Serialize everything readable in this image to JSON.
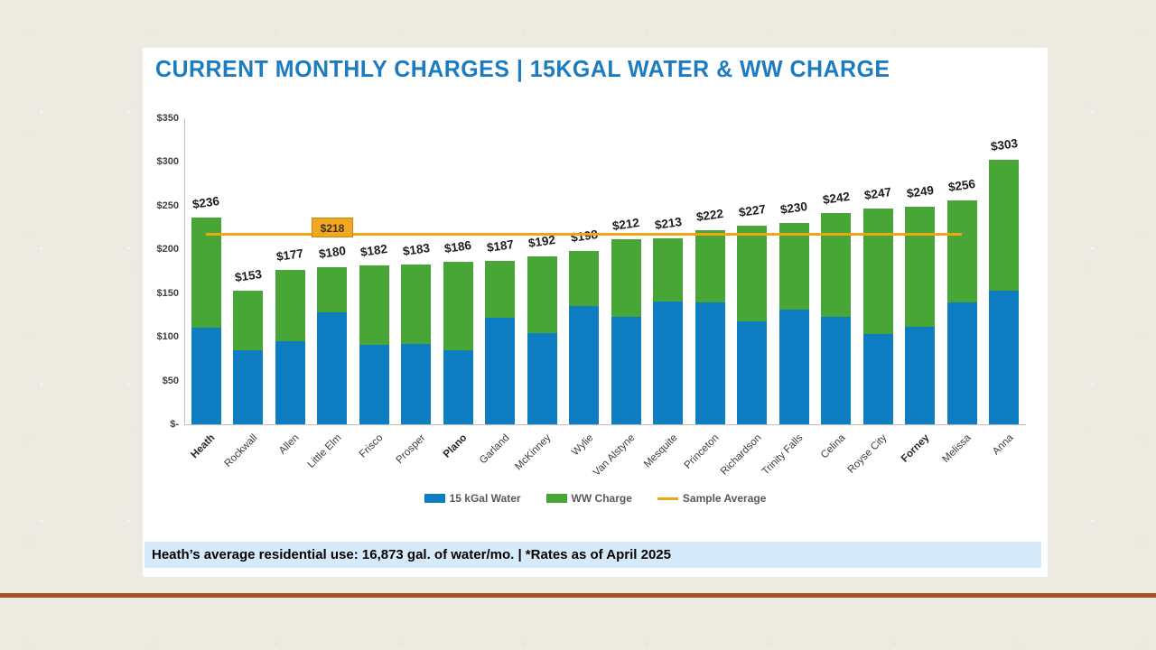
{
  "slide": {
    "title": "CURRENT MONTHLY CHARGES | 15KGAL WATER & WW CHARGE",
    "footnote": "Heath’s average residential use: 16,873 gal. of water/mo. | *Rates as of April 2025"
  },
  "colors": {
    "water_blue": "#0f7dc2",
    "ww_green": "#47a636",
    "average_orange": "#f0a512",
    "title_blue": "#1b7cc1",
    "footnote_bg": "#d7eafa",
    "divider_brown": "#a4512a"
  },
  "legend": [
    {
      "label": "15 kGal Water",
      "swatch": "box",
      "color": "#0f7dc2"
    },
    {
      "label": "WW Charge",
      "swatch": "box",
      "color": "#47a636"
    },
    {
      "label": "Sample Average",
      "swatch": "line",
      "color": "#f0a512"
    }
  ],
  "chart_data": {
    "type": "bar",
    "stacked": true,
    "title": "CURRENT MONTHLY CHARGES | 15KGAL WATER & WW CHARGE",
    "xlabel": "",
    "ylabel": "",
    "grid": false,
    "legend_position": "bottom",
    "categories": [
      "Heath",
      "Rockwall",
      "Allen",
      "Little Elm",
      "Frisco",
      "Prosper",
      "Plano",
      "Garland",
      "McKinney",
      "Wylie",
      "Van Alstyne",
      "Mesquite",
      "Princeton",
      "Richardson",
      "Trinity Falls",
      "Celina",
      "Royse City",
      "Forney",
      "Melissa",
      "Anna"
    ],
    "emphasized_categories": [
      "Heath",
      "Plano",
      "Forney"
    ],
    "series": [
      {
        "name": "15 kGal Water",
        "color": "#0f7dc2",
        "values": [
          110,
          85,
          95,
          128,
          91,
          92,
          85,
          122,
          104,
          135,
          123,
          140,
          139,
          118,
          131,
          123,
          103,
          111,
          139,
          153
        ]
      },
      {
        "name": "WW Charge",
        "color": "#47a636",
        "values": [
          126,
          68,
          82,
          52,
          91,
          91,
          101,
          65,
          88,
          63,
          89,
          73,
          83,
          109,
          99,
          119,
          144,
          138,
          117,
          150
        ]
      }
    ],
    "totals": [
      236,
      153,
      177,
      180,
      182,
      183,
      186,
      187,
      192,
      198,
      212,
      213,
      222,
      227,
      230,
      242,
      247,
      249,
      256,
      303
    ],
    "total_labels": [
      "$236",
      "$153",
      "$177",
      "$180",
      "$182",
      "$183",
      "$186",
      "$187",
      "$192",
      "$198",
      "$212",
      "$213",
      "$222",
      "$227",
      "$230",
      "$242",
      "$247",
      "$249",
      "$256",
      "$303"
    ],
    "average": {
      "name": "Sample Average",
      "value": 218,
      "label": "$218",
      "color": "#f0a512",
      "span_categories": [
        "Heath",
        "Melissa"
      ]
    },
    "y_axis": {
      "min": 0,
      "max": 350,
      "tick_step": 50,
      "ticks": [
        {
          "label": "$350",
          "value": 350
        },
        {
          "label": "$300",
          "value": 300
        },
        {
          "label": "$250",
          "value": 250
        },
        {
          "label": "$200",
          "value": 200
        },
        {
          "label": "$150",
          "value": 150
        },
        {
          "label": "$100",
          "value": 100
        },
        {
          "label": "$50",
          "value": 50
        },
        {
          "label": "$-",
          "value": 0
        }
      ]
    }
  }
}
